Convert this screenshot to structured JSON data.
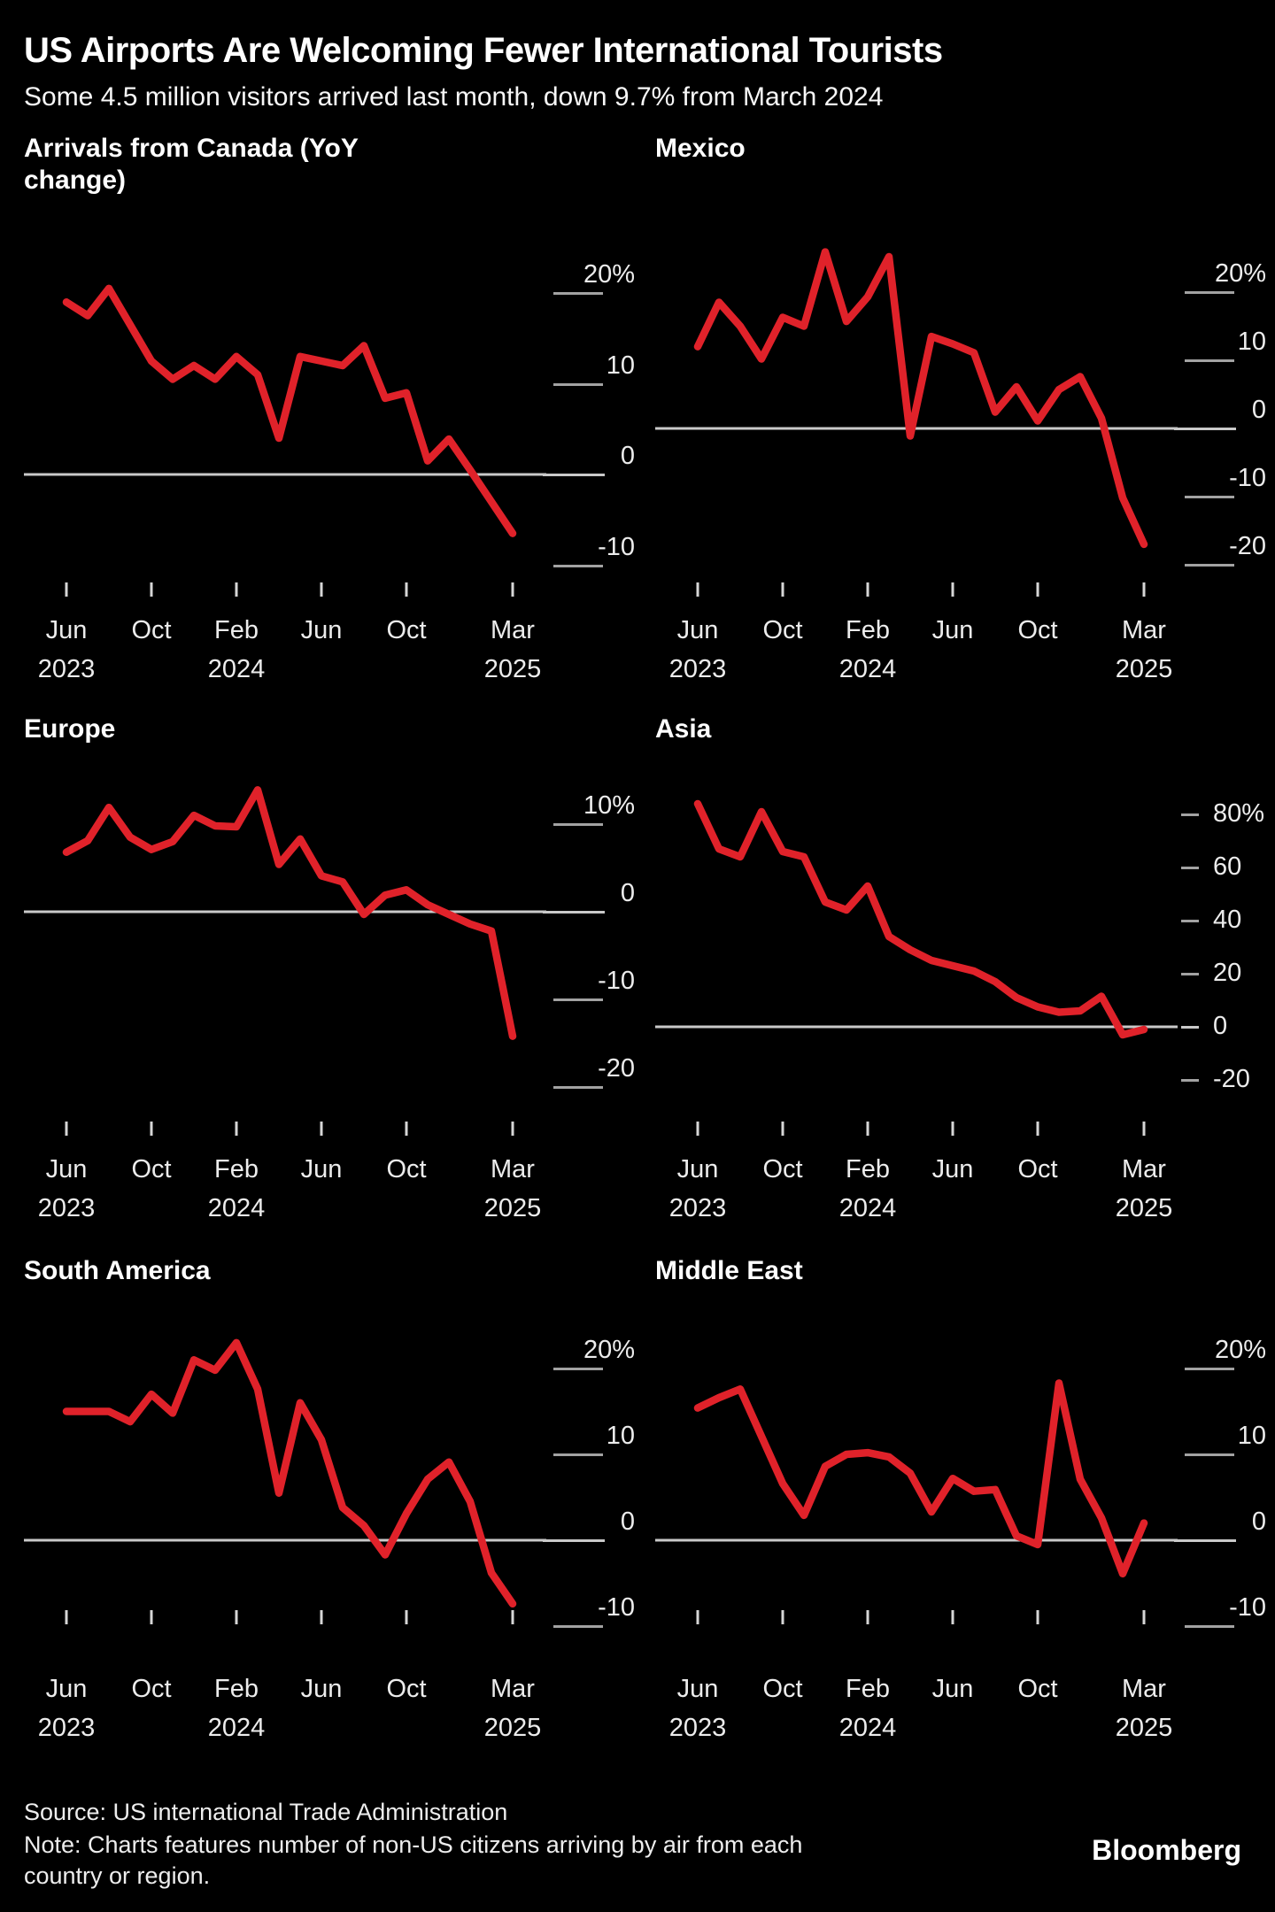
{
  "header": {
    "title": "US Airports Are Welcoming Fewer International Tourists",
    "subtitle": "Some 4.5 million visitors arrived last month, down 9.7% from March 2024"
  },
  "colors": {
    "line_red": "#e0222a",
    "zero_line": "#c9c9c9",
    "tick_gray": "#a2a2a2",
    "x_tick": "#d6d6d6",
    "background": "#000000",
    "text": "#ffffff"
  },
  "x_axis": {
    "tick_indices": [
      0,
      4,
      8,
      12,
      16,
      21
    ],
    "tick_labels": [
      "Jun",
      "Oct",
      "Feb",
      "Jun",
      "Oct",
      "Mar"
    ],
    "year_labels": {
      "0": "2023",
      "8": "2024",
      "21": "2025"
    }
  },
  "months": [
    "Jun 2023",
    "Jul 2023",
    "Aug 2023",
    "Sep 2023",
    "Oct 2023",
    "Nov 2023",
    "Dec 2023",
    "Jan 2024",
    "Feb 2024",
    "Mar 2024",
    "Apr 2024",
    "May 2024",
    "Jun 2024",
    "Jul 2024",
    "Aug 2024",
    "Sep 2024",
    "Oct 2024",
    "Nov 2024",
    "Dec 2024",
    "Jan 2025",
    "Feb 2025",
    "Mar 2025"
  ],
  "chart_data": [
    {
      "id": "canada",
      "type": "line",
      "title": "Arrivals from Canada (YoY change)",
      "axis_style": "underline",
      "legend_position": "none",
      "grid": false,
      "ylim": [
        -13,
        24
      ],
      "y_ticks": [
        {
          "value": 20,
          "label": "20%"
        },
        {
          "value": 10,
          "label": "10"
        },
        {
          "value": 0,
          "label": "0"
        },
        {
          "value": -10,
          "label": "-10"
        }
      ],
      "values": [
        19,
        17.5,
        20.5,
        16.5,
        12.5,
        10.5,
        12,
        10.5,
        13,
        11,
        4,
        13,
        12.5,
        12,
        14.2,
        8.4,
        9,
        1.5,
        3.9,
        0.5,
        -3,
        -6.5
      ]
    },
    {
      "id": "mexico",
      "type": "line",
      "title": "Mexico",
      "axis_style": "underline",
      "legend_position": "none",
      "grid": false,
      "ylim": [
        -24,
        28
      ],
      "y_ticks": [
        {
          "value": 20,
          "label": "20%"
        },
        {
          "value": 10,
          "label": "10"
        },
        {
          "value": 0,
          "label": "0"
        },
        {
          "value": -10,
          "label": "-10"
        },
        {
          "value": -20,
          "label": "-20"
        }
      ],
      "values": [
        12,
        18.5,
        15,
        10.2,
        16.3,
        15,
        25.9,
        15.7,
        19.3,
        25.2,
        -1.1,
        13.5,
        12.4,
        11.1,
        2.4,
        6.1,
        1.1,
        5.7,
        7.6,
        1.5,
        -10.2,
        -17
      ]
    },
    {
      "id": "europe",
      "type": "line",
      "title": "Europe",
      "axis_style": "underline",
      "legend_position": "none",
      "grid": false,
      "ylim": [
        -22,
        16
      ],
      "y_ticks": [
        {
          "value": 10,
          "label": "10%"
        },
        {
          "value": 0,
          "label": "0"
        },
        {
          "value": -10,
          "label": "-10"
        },
        {
          "value": -20,
          "label": "-20"
        }
      ],
      "values": [
        6.8,
        8.1,
        11.9,
        8.5,
        7.1,
        8,
        11,
        9.8,
        9.7,
        13.9,
        5.4,
        8.3,
        4.1,
        3.4,
        -0.3,
        1.9,
        2.5,
        0.8,
        -0.3,
        -1.4,
        -2.2,
        -14.2
      ]
    },
    {
      "id": "asia",
      "type": "line",
      "title": "Asia",
      "axis_style": "dash",
      "legend_position": "none",
      "grid": false,
      "ylim": [
        -25,
        90
      ],
      "y_ticks": [
        {
          "value": 80,
          "label": "80%"
        },
        {
          "value": 60,
          "label": "60"
        },
        {
          "value": 40,
          "label": "40"
        },
        {
          "value": 20,
          "label": "20"
        },
        {
          "value": 0,
          "label": "0"
        },
        {
          "value": -20,
          "label": "-20"
        }
      ],
      "values": [
        84,
        67,
        64,
        81,
        66,
        64,
        47,
        44,
        53,
        34,
        29,
        25,
        23,
        21,
        17,
        11,
        7.5,
        5.5,
        6,
        11.5,
        -3,
        -1
      ]
    },
    {
      "id": "south_america",
      "type": "line",
      "title": "South America",
      "axis_style": "underline",
      "legend_position": "none",
      "grid": false,
      "ylim": [
        -13,
        26
      ],
      "y_ticks": [
        {
          "value": 20,
          "label": "20%"
        },
        {
          "value": 10,
          "label": "10"
        },
        {
          "value": 0,
          "label": "0"
        },
        {
          "value": -10,
          "label": "-10"
        }
      ],
      "values": [
        15,
        15,
        15,
        13.8,
        17,
        14.8,
        21,
        19.8,
        23,
        17.6,
        5.5,
        16,
        11.7,
        3.8,
        1.7,
        -1.7,
        3.1,
        7.1,
        9.1,
        4.5,
        -3.8,
        -7.4
      ]
    },
    {
      "id": "middle_east",
      "type": "line",
      "title": "Middle East",
      "axis_style": "underline",
      "legend_position": "none",
      "grid": false,
      "ylim": [
        -13,
        26
      ],
      "y_ticks": [
        {
          "value": 20,
          "label": "20%"
        },
        {
          "value": 10,
          "label": "10"
        },
        {
          "value": 0,
          "label": "0"
        },
        {
          "value": -10,
          "label": "-10"
        }
      ],
      "values": [
        15.4,
        16.6,
        17.6,
        12.1,
        6.6,
        2.9,
        8.6,
        10,
        10.2,
        9.7,
        7.8,
        3.3,
        7.2,
        5.7,
        5.9,
        0.5,
        -0.5,
        18.3,
        7.1,
        2.6,
        -3.9,
        2
      ]
    }
  ],
  "footer": {
    "source": "Source: US international Trade Administration",
    "note": "Note: Charts features number of non-US citizens arriving by air from each country or region.",
    "brand": "Bloomberg"
  }
}
